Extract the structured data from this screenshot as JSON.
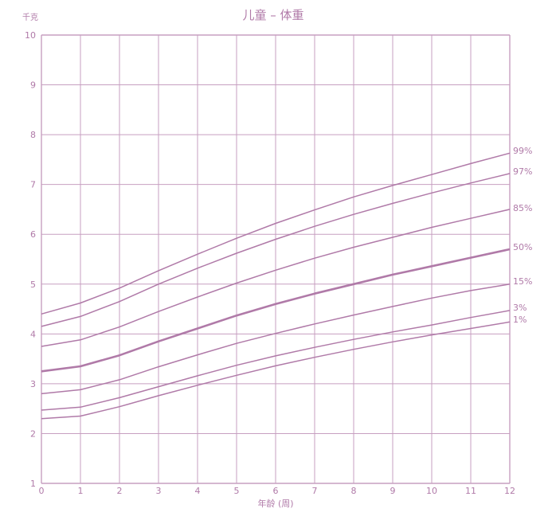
{
  "colors": {
    "line": "#b07aa8",
    "grid": "#c79fc0",
    "text": "#b07aa8",
    "background": "#ffffff"
  },
  "chart_data": {
    "type": "line",
    "title": "儿童 – 体重",
    "ylabel": "千克",
    "xlabel": "年龄 (周)",
    "xlim": [
      0,
      12
    ],
    "ylim": [
      1,
      10
    ],
    "x_ticks": [
      0,
      1,
      2,
      3,
      4,
      5,
      6,
      7,
      8,
      9,
      10,
      11,
      12
    ],
    "y_ticks": [
      1,
      2,
      3,
      4,
      5,
      6,
      7,
      8,
      9,
      10
    ],
    "grid": true,
    "x": [
      0,
      1,
      2,
      3,
      4,
      5,
      6,
      7,
      8,
      9,
      10,
      11,
      12
    ],
    "series": [
      {
        "name": "99%",
        "emphasis": false,
        "values": [
          4.4,
          4.62,
          4.92,
          5.27,
          5.6,
          5.92,
          6.22,
          6.49,
          6.75,
          6.98,
          7.2,
          7.42,
          7.63
        ]
      },
      {
        "name": "97%",
        "emphasis": false,
        "values": [
          4.15,
          4.35,
          4.65,
          5.0,
          5.32,
          5.62,
          5.9,
          6.16,
          6.4,
          6.62,
          6.83,
          7.03,
          7.22
        ]
      },
      {
        "name": "85%",
        "emphasis": false,
        "values": [
          3.75,
          3.88,
          4.14,
          4.45,
          4.74,
          5.02,
          5.28,
          5.52,
          5.74,
          5.94,
          6.14,
          6.32,
          6.5
        ]
      },
      {
        "name": "50%",
        "emphasis": true,
        "values": [
          3.25,
          3.35,
          3.57,
          3.85,
          4.11,
          4.37,
          4.6,
          4.81,
          5.0,
          5.19,
          5.36,
          5.53,
          5.7
        ]
      },
      {
        "name": "15%",
        "emphasis": false,
        "values": [
          2.8,
          2.88,
          3.08,
          3.34,
          3.58,
          3.81,
          4.01,
          4.2,
          4.38,
          4.55,
          4.72,
          4.87,
          5.0
        ]
      },
      {
        "name": "3%",
        "emphasis": false,
        "values": [
          2.47,
          2.53,
          2.72,
          2.94,
          3.16,
          3.37,
          3.56,
          3.73,
          3.89,
          4.04,
          4.18,
          4.33,
          4.47
        ]
      },
      {
        "name": "1%",
        "emphasis": false,
        "values": [
          2.3,
          2.35,
          2.54,
          2.76,
          2.97,
          3.17,
          3.36,
          3.53,
          3.69,
          3.84,
          3.98,
          4.11,
          4.24
        ]
      }
    ]
  }
}
